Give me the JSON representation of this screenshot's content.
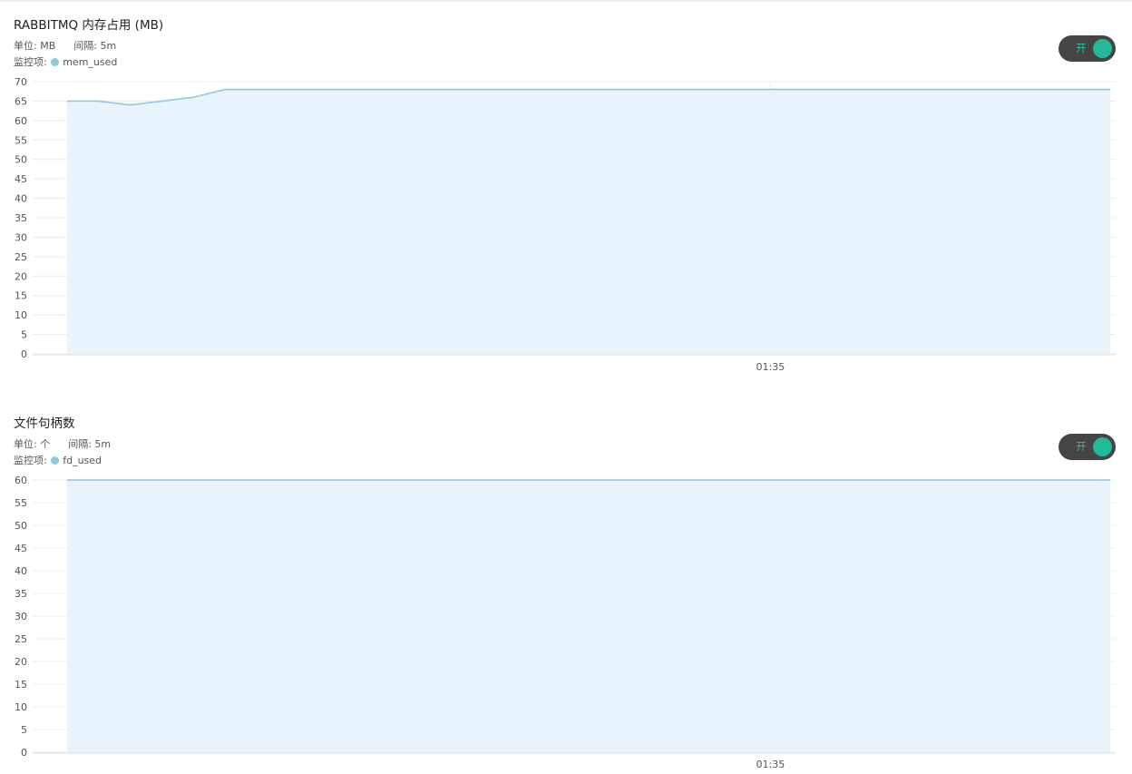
{
  "colors": {
    "series": "#90c8e0",
    "area": "#e8f3fb",
    "grid": "#ececec",
    "toggle_on": "#22b999"
  },
  "chart_data": [
    {
      "type": "area",
      "title": "RABBITMQ 内存占用 (MB)",
      "unit_text": "单位: MB",
      "interval_text": "间隔: 5m",
      "monitor_label": "监控项:",
      "series": [
        {
          "name": "mem_used",
          "values": [
            65,
            65,
            64,
            65,
            66,
            68,
            68,
            68,
            68,
            68,
            68,
            68,
            68,
            68,
            68,
            68,
            68,
            68,
            68,
            68,
            68,
            68,
            68,
            68,
            68,
            68,
            68,
            68,
            68,
            68,
            68,
            68,
            68,
            68
          ]
        }
      ],
      "ylim": [
        0,
        70
      ],
      "yticks": [
        "0",
        "5",
        "10",
        "15",
        "20",
        "25",
        "30",
        "35",
        "40",
        "45",
        "50",
        "55",
        "60",
        "65",
        "70"
      ],
      "xtick_label": "01:35",
      "xtick_index": 22.25,
      "grid": true,
      "legend": "top-left"
    },
    {
      "type": "area",
      "title": "文件句柄数",
      "unit_text": "单位: 个",
      "interval_text": "间隔: 5m",
      "monitor_label": "监控项:",
      "series": [
        {
          "name": "fd_used",
          "values": [
            60,
            60,
            60,
            60,
            60,
            60,
            60,
            60,
            60,
            60,
            60,
            60,
            60,
            60,
            60,
            60,
            60,
            60,
            60,
            60,
            60,
            60,
            60,
            60,
            60,
            60,
            60,
            60,
            60,
            60,
            60,
            60,
            60,
            60
          ]
        }
      ],
      "ylim": [
        0,
        60
      ],
      "yticks": [
        "0",
        "5",
        "10",
        "15",
        "20",
        "25",
        "30",
        "35",
        "40",
        "45",
        "50",
        "55",
        "60"
      ],
      "xtick_label": "01:35",
      "xtick_index": 22.25,
      "grid": true,
      "legend": "top-left"
    }
  ],
  "toggles": [
    {
      "label": "开",
      "state": "on"
    },
    {
      "label": "开",
      "state": "on"
    }
  ]
}
